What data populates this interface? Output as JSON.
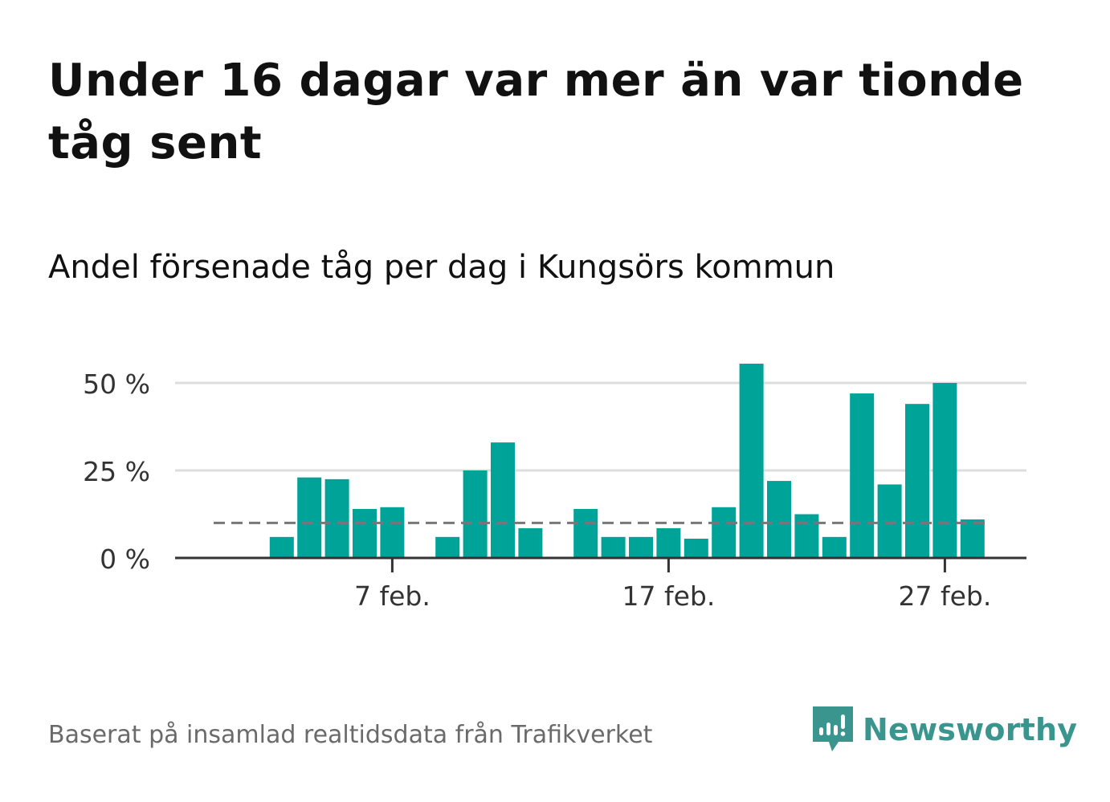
{
  "title": "Under 16 dagar var mer än var tionde tåg sent",
  "subtitle": "Andel försenade tåg per dag i Kungsörs kommun",
  "source": "Baserat på insamlad realtidsdata från Trafikverket",
  "brand": {
    "name": "Newsworthy",
    "color": "#3a958e",
    "icon": "newsworthy-logo-icon"
  },
  "colors": {
    "bar": "#00a398",
    "grid": "#dddddd",
    "axis": "#333333",
    "reference": "#777777"
  },
  "chart_data": {
    "type": "bar",
    "title": "",
    "xlabel": "",
    "ylabel": "",
    "ylim": [
      0,
      60
    ],
    "yticks": [
      0,
      25,
      50
    ],
    "ytick_labels": [
      "0 %",
      "25 %",
      "50 %"
    ],
    "xticks": [
      "7 feb.",
      "17 feb.",
      "27 feb."
    ],
    "xtick_days": [
      7,
      17,
      27
    ],
    "grid": true,
    "legend": "none",
    "reference_line": {
      "value": 10,
      "style": "dashed"
    },
    "categories": [
      "1 feb.",
      "2 feb.",
      "3 feb.",
      "4 feb.",
      "5 feb.",
      "6 feb.",
      "7 feb.",
      "8 feb.",
      "9 feb.",
      "10 feb.",
      "11 feb.",
      "12 feb.",
      "13 feb.",
      "14 feb.",
      "15 feb.",
      "16 feb.",
      "17 feb.",
      "18 feb.",
      "19 feb.",
      "20 feb.",
      "21 feb.",
      "22 feb.",
      "23 feb.",
      "24 feb.",
      "25 feb.",
      "26 feb.",
      "27 feb.",
      "28 feb."
    ],
    "values": [
      0,
      0,
      6,
      23,
      22.5,
      14,
      14.5,
      0,
      6,
      25,
      33,
      8.5,
      0,
      14,
      6,
      6,
      8.5,
      5.5,
      14.5,
      55.5,
      22,
      12.5,
      6,
      47,
      21,
      44,
      50,
      11
    ]
  }
}
